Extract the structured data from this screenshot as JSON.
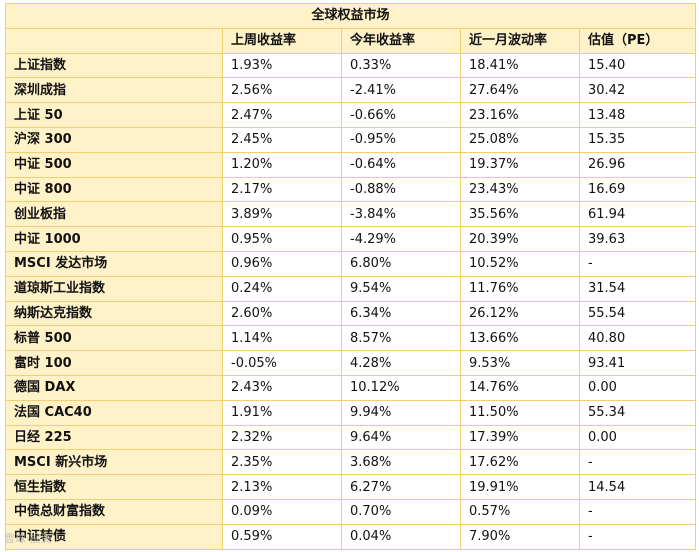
{
  "table": {
    "title": "全球权益市场",
    "columns": [
      "",
      "上周收益率",
      "今年收益率",
      "近一月波动率",
      "估值（PE）"
    ],
    "rows": [
      [
        "上证指数",
        "1.93%",
        "0.33%",
        "18.41%",
        "15.40"
      ],
      [
        "深圳成指",
        "2.56%",
        "-2.41%",
        "27.64%",
        "30.42"
      ],
      [
        "上证 50",
        "2.47%",
        "-0.66%",
        "23.16%",
        "13.48"
      ],
      [
        "沪深 300",
        "2.45%",
        "-0.95%",
        "25.08%",
        "15.35"
      ],
      [
        "中证 500",
        "1.20%",
        "-0.64%",
        "19.37%",
        "26.96"
      ],
      [
        "中证 800",
        "2.17%",
        "-0.88%",
        "23.43%",
        "16.69"
      ],
      [
        "创业板指",
        "3.89%",
        "-3.84%",
        "35.56%",
        "61.94"
      ],
      [
        "中证 1000",
        "0.95%",
        "-4.29%",
        "20.39%",
        "39.63"
      ],
      [
        "MSCI 发达市场",
        "0.96%",
        "6.80%",
        "10.52%",
        "-"
      ],
      [
        "道琼斯工业指数",
        "0.24%",
        "9.54%",
        "11.76%",
        "31.54"
      ],
      [
        "纳斯达克指数",
        "2.60%",
        "6.34%",
        "26.12%",
        "55.54"
      ],
      [
        "标普 500",
        "1.14%",
        "8.57%",
        "13.66%",
        "40.80"
      ],
      [
        "富时 100",
        "-0.05%",
        "4.28%",
        "9.53%",
        "93.41"
      ],
      [
        "德国 DAX",
        "2.43%",
        "10.12%",
        "14.76%",
        "0.00"
      ],
      [
        "法国 CAC40",
        "1.91%",
        "9.94%",
        "11.50%",
        "55.34"
      ],
      [
        "日经 225",
        "2.32%",
        "9.64%",
        "17.39%",
        "0.00"
      ],
      [
        "MSCI 新兴市场",
        "2.35%",
        "3.68%",
        "17.62%",
        "-"
      ],
      [
        "恒生指数",
        "2.13%",
        "6.27%",
        "19.91%",
        "14.54"
      ],
      [
        "中债总财富指数",
        "0.09%",
        "0.70%",
        "0.57%",
        "-"
      ],
      [
        "中证转债",
        "0.59%",
        "0.04%",
        "7.90%",
        "-"
      ]
    ]
  },
  "watermark": "雪球·投资"
}
